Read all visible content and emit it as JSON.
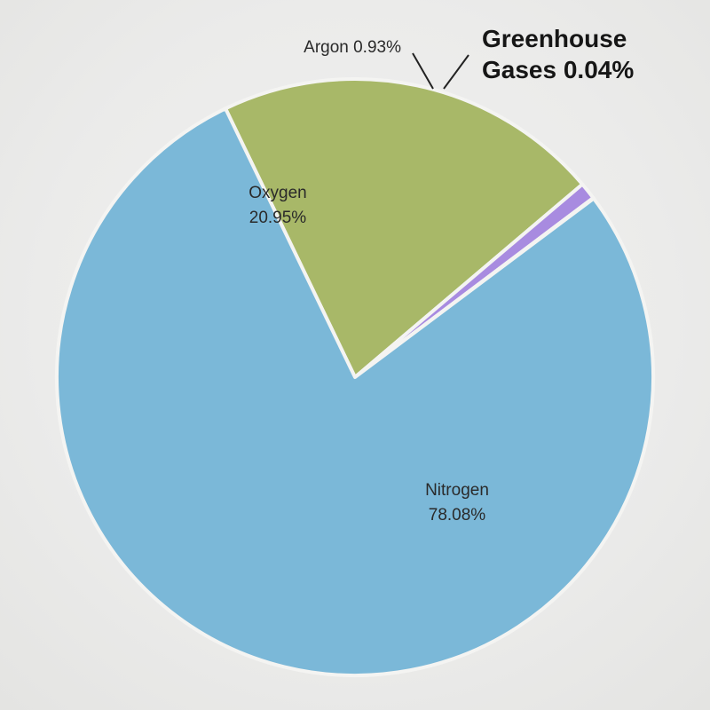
{
  "chart_data": {
    "type": "pie",
    "slices": [
      {
        "name": "Nitrogen",
        "value": 78.08,
        "value_label": "78.08%",
        "color": "#7bb8d8"
      },
      {
        "name": "Oxygen",
        "value": 20.95,
        "value_label": "20.95%",
        "color": "#a8b868"
      },
      {
        "name": "Argon",
        "value": 0.93,
        "value_label": "0.93%",
        "color": "#a88be0"
      },
      {
        "name": "Greenhouse Gases",
        "value": 0.04,
        "value_label": "0.04%",
        "color": "#7bb8d8"
      }
    ],
    "callouts": {
      "argon": "Argon 0.93%",
      "greenhouse_line1": "Greenhouse",
      "greenhouse_line2": "Gases 0.04%"
    }
  }
}
